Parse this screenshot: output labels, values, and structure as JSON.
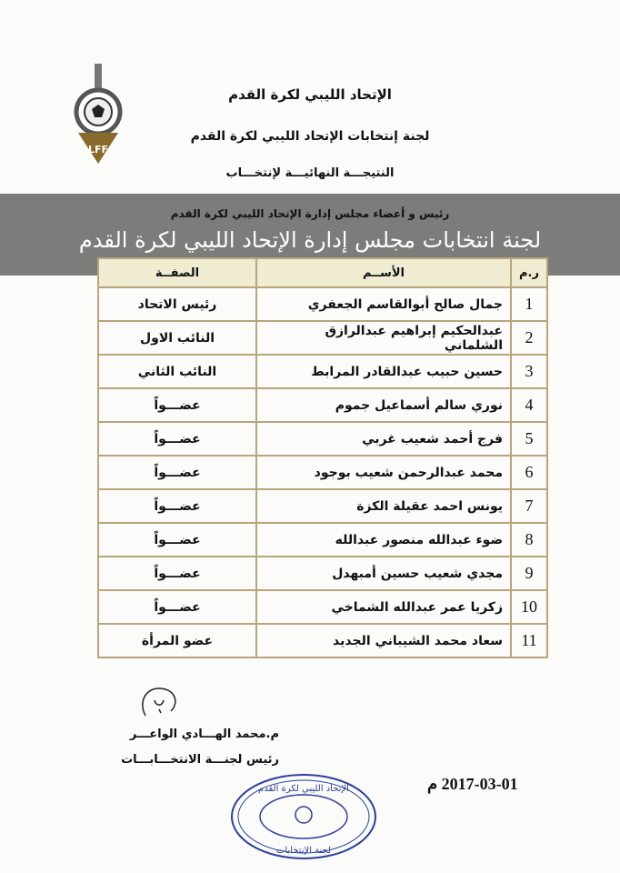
{
  "header": {
    "line1": "الإتحاد الليبي لكرة القدم",
    "line2": "لجنة إنتخابات الإتحاد الليبي لكرة القدم",
    "line3": "النتيجـــة النهائيـــة لإنتخـــاب",
    "line4": "رئيس و أعضاء مجلس إدارة الإتحاد الليبي لكرة القدم"
  },
  "logo": {
    "text": "LFF"
  },
  "banner": {
    "text": "لجنة انتخابات مجلس إدارة الإتحاد الليبي لكرة القدم"
  },
  "table": {
    "headers": {
      "num": "ر.م",
      "name": "الأســم",
      "role": "الصفــة"
    },
    "rows": [
      {
        "num": "1",
        "name": "جمال صالح أبوالقاسم الجعفري",
        "role": "رئيس الاتحاد"
      },
      {
        "num": "2",
        "name": "عبدالحكيم إبراهيم عبدالرازق الشلماني",
        "role": "النائب الاول"
      },
      {
        "num": "3",
        "name": "حسين حبيب عبدالقادر المرابط",
        "role": "النائب الثاني"
      },
      {
        "num": "4",
        "name": "نوري سالم أسماعيل جموم",
        "role": "عضـــواً"
      },
      {
        "num": "5",
        "name": "فرج أحمد شعيب غربي",
        "role": "عضـــواً"
      },
      {
        "num": "6",
        "name": "محمد عبدالرحمن شعيب بوجود",
        "role": "عضـــواً"
      },
      {
        "num": "7",
        "name": "يونس احمد عقيلة الكزة",
        "role": "عضـــواً"
      },
      {
        "num": "8",
        "name": "ضوء عبدالله منصور عبدالله",
        "role": "عضـــواً"
      },
      {
        "num": "9",
        "name": "مجدي شعيب حسين أمبهدل",
        "role": "عضـــواً"
      },
      {
        "num": "10",
        "name": "زكريا عمر عبدالله الشماخي",
        "role": "عضـــواً"
      },
      {
        "num": "11",
        "name": "سعاد محمد الشيباني الجديد",
        "role": "عضو المرأة"
      }
    ]
  },
  "footer": {
    "signer": "م.محمد الهـــادي الواعـــر",
    "title": "رئيس لجنـــة الانتخـــابـــات",
    "date": "2017-03-01 م",
    "stamp_top": "الإتحاد الليبي لكرة القدم",
    "stamp_bottom": "لجنة الإنتخابات"
  },
  "colors": {
    "table_border": "#b9a47c",
    "stamp": "#2a3f9a",
    "banner": "#5f5f5f"
  }
}
